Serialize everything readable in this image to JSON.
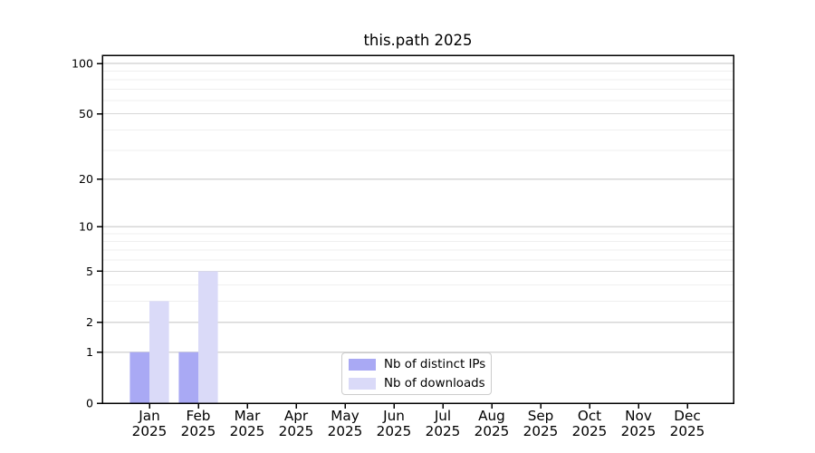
{
  "chart_data": {
    "type": "bar",
    "title": "this.path 2025",
    "categories": [
      "Jan",
      "Feb",
      "Mar",
      "Apr",
      "May",
      "Jun",
      "Jul",
      "Aug",
      "Sep",
      "Oct",
      "Nov",
      "Dec"
    ],
    "x_tick_year": "2025",
    "series": [
      {
        "name": "Nb of distinct IPs",
        "color": "#a9a9f4",
        "values": [
          1,
          1,
          0,
          0,
          0,
          0,
          0,
          0,
          0,
          0,
          0,
          0
        ]
      },
      {
        "name": "Nb of downloads",
        "color": "#dadaf8",
        "values": [
          3,
          5,
          0,
          0,
          0,
          0,
          0,
          0,
          0,
          0,
          0,
          0
        ]
      }
    ],
    "xlabel": "",
    "ylabel": "",
    "y_scale": "log10(1+x)",
    "y_ticks": [
      0,
      1,
      2,
      5,
      10,
      20,
      50,
      100
    ],
    "y_tick_labels": [
      "0",
      "1",
      "2",
      "5",
      "10",
      "20",
      "50",
      "100"
    ],
    "y_minor_gridlines": [
      3,
      4,
      6,
      7,
      8,
      9,
      30,
      40,
      60,
      70,
      80,
      90
    ],
    "ylim": [
      0,
      112
    ],
    "grid": "horizontal",
    "legend_position": "lower center"
  },
  "colors": {
    "background": "#ffffff",
    "axis": "#000000",
    "grid_major": "#d7d7d7",
    "grid_top": "#c3c3c3",
    "grid_minor": "#efefef",
    "legend_border": "#cccccc",
    "text": "#000000"
  }
}
